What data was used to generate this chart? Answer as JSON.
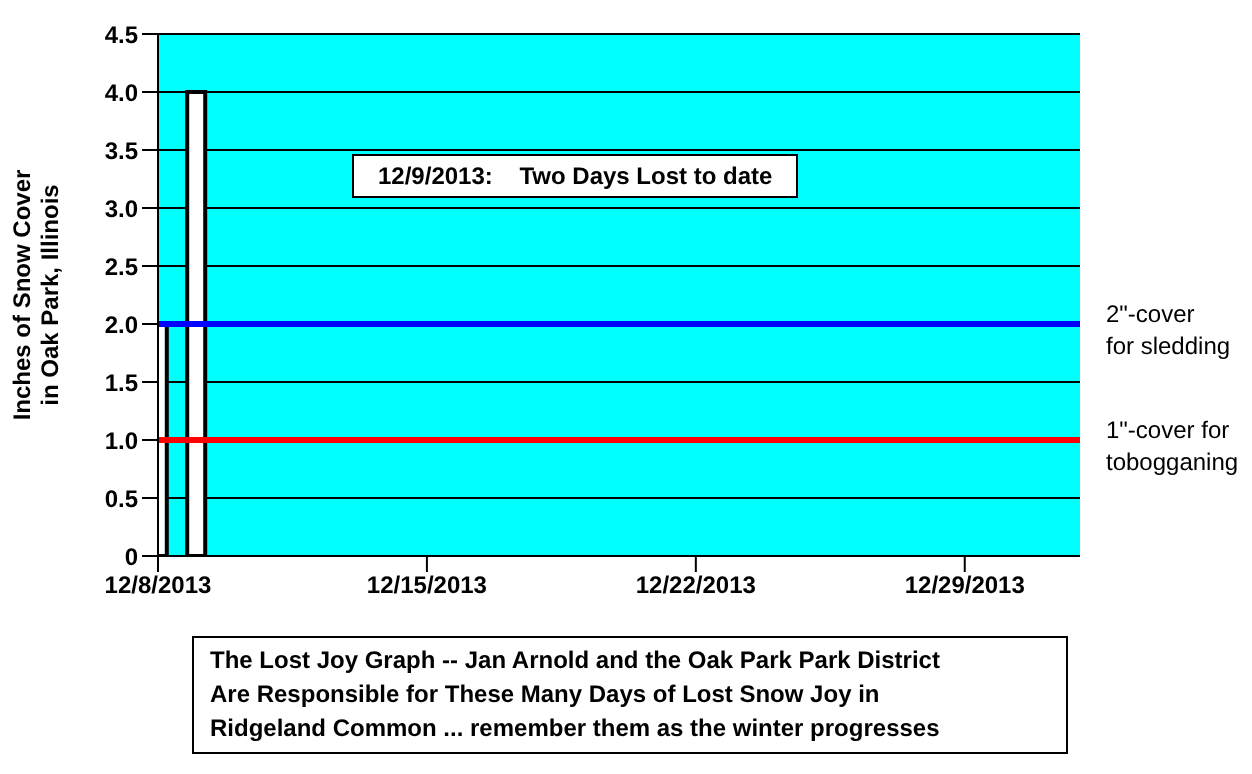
{
  "chart_data": {
    "type": "bar",
    "ylabel": "Inches of Snow Cover\nin Oak Park, Illinois",
    "x": [
      "2013-12-08",
      "2013-12-09"
    ],
    "series": [
      {
        "color": "#ffffff",
        "values": [
          2.0,
          4.0
        ]
      }
    ],
    "xlim": [
      "2013-12-08",
      "2014-01-01"
    ],
    "xticks": [
      {
        "value": "2013-12-08",
        "label": "12/8/2013"
      },
      {
        "value": "2013-12-15",
        "label": "12/15/2013"
      },
      {
        "value": "2013-12-22",
        "label": "12/22/2013"
      },
      {
        "value": "2013-12-29",
        "label": "12/29/2013"
      }
    ],
    "ylim": [
      0,
      4.5
    ],
    "yticks": [
      0,
      0.5,
      {
        "value": 1,
        "label": "1.0"
      },
      1.5,
      {
        "value": 2,
        "label": "2.0"
      },
      2.5,
      {
        "value": 3,
        "label": "3.0"
      },
      3.5,
      {
        "value": 4,
        "label": "4.0"
      },
      4.5
    ],
    "grid": "y",
    "ref_lines": [
      {
        "axis": "y",
        "value": 2,
        "label": "2\"-cover\nfor sledding",
        "color": "#0000ff"
      },
      {
        "axis": "y",
        "value": 1,
        "label": "1\"-cover for\ntobogganing",
        "color": "#ff0000"
      }
    ],
    "annotations": [
      "12/9/2013:    Two Days Lost to date",
      "The Lost Joy Graph -- Jan Arnold and the Oak Park Park District\nAre Responsible for These Many Days of Lost Snow Joy in\nRidgeland Common ... remember them as the winter progresses"
    ]
  }
}
